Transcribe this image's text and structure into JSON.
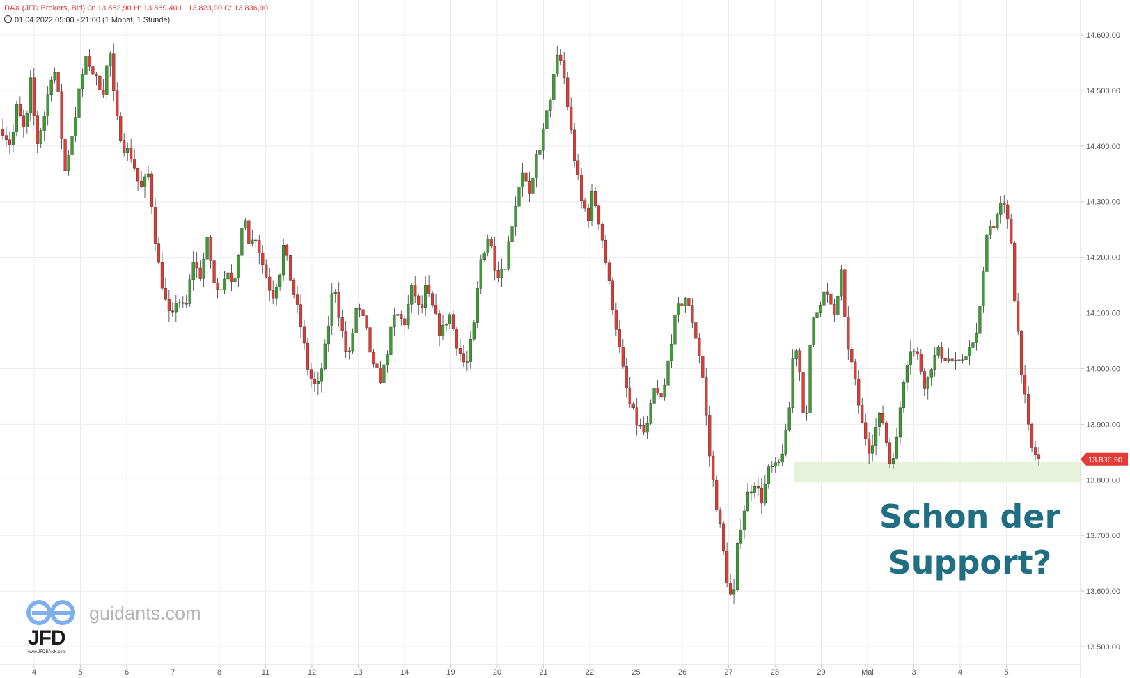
{
  "header": {
    "line1": "DAX (JFD Brokers, Bid)  O: 13.862,90  H: 13.869,40  L: 13.823,90  C: 13.836,90",
    "line2": "01.04.2022 05:00 - 21:00   (1 Monat, 1 Stunde)"
  },
  "annotation": {
    "line1": "Schon der",
    "line2": "Support?"
  },
  "watermark": {
    "site": "guidants.com",
    "brand": "JFD",
    "url": "www.JFDBANK.com"
  },
  "colors": {
    "up": "#3a9d2f",
    "down": "#e53935",
    "zone": "#e6f3da",
    "grid": "#ececec",
    "annotation": "#1f6e82"
  },
  "chart_data": {
    "type": "candlestick",
    "y_range": [
      13500,
      14600
    ],
    "y_ticks": [
      13500,
      13600,
      13700,
      13800,
      13900,
      14000,
      14100,
      14200,
      14300,
      14400,
      14500,
      14600
    ],
    "y_tick_labels": [
      "13.500,00",
      "13.600,00",
      "13.700,00",
      "13.800,00",
      "13.900,00",
      "14.000,00",
      "14.100,00",
      "14.200,00",
      "14.300,00",
      "14.400,00",
      "14.500,00",
      "14.600,00"
    ],
    "x_labels": [
      "4",
      "5",
      "6",
      "7",
      "8",
      "11",
      "12",
      "13",
      "14",
      "19",
      "20",
      "21",
      "22",
      "25",
      "26",
      "27",
      "28",
      "29",
      "Mai",
      "3",
      "4",
      "5"
    ],
    "last_price": 13836.9,
    "last_price_label": "13.836,90",
    "support_zone": [
      13795,
      13833
    ],
    "path": [
      [
        0,
        14430
      ],
      [
        0.3,
        14400
      ],
      [
        0.5,
        14470
      ],
      [
        0.8,
        14420
      ],
      [
        1.0,
        14520
      ],
      [
        1.2,
        14400
      ],
      [
        1.5,
        14460
      ],
      [
        1.8,
        14550
      ],
      [
        2.0,
        14480
      ],
      [
        2.2,
        14350
      ],
      [
        2.5,
        14430
      ],
      [
        2.8,
        14520
      ],
      [
        3.0,
        14560
      ],
      [
        3.3,
        14520
      ],
      [
        3.6,
        14500
      ],
      [
        3.8,
        14580
      ],
      [
        4.0,
        14460
      ],
      [
        4.3,
        14400
      ],
      [
        4.6,
        14380
      ],
      [
        4.9,
        14320
      ],
      [
        5.2,
        14350
      ],
      [
        5.5,
        14200
      ],
      [
        5.8,
        14120
      ],
      [
        6.0,
        14080
      ],
      [
        6.2,
        14130
      ],
      [
        6.5,
        14100
      ],
      [
        6.8,
        14200
      ],
      [
        7.0,
        14160
      ],
      [
        7.3,
        14230
      ],
      [
        7.6,
        14130
      ],
      [
        8.0,
        14180
      ],
      [
        8.3,
        14150
      ],
      [
        8.6,
        14290
      ],
      [
        8.8,
        14220
      ],
      [
        9.0,
        14240
      ],
      [
        9.3,
        14180
      ],
      [
        9.6,
        14130
      ],
      [
        9.9,
        14180
      ],
      [
        10.0,
        14220
      ],
      [
        10.3,
        14150
      ],
      [
        10.6,
        14080
      ],
      [
        10.9,
        13990
      ],
      [
        11.2,
        13960
      ],
      [
        11.5,
        14040
      ],
      [
        11.8,
        14160
      ],
      [
        12.0,
        14090
      ],
      [
        12.3,
        14010
      ],
      [
        12.6,
        14110
      ],
      [
        12.9,
        14080
      ],
      [
        13.2,
        14000
      ],
      [
        13.5,
        13980
      ],
      [
        13.8,
        14060
      ],
      [
        14.0,
        14100
      ],
      [
        14.3,
        14080
      ],
      [
        14.6,
        14150
      ],
      [
        14.9,
        14090
      ],
      [
        15.0,
        14150
      ],
      [
        15.3,
        14110
      ],
      [
        15.6,
        14060
      ],
      [
        15.9,
        14100
      ],
      [
        16.2,
        14040
      ],
      [
        16.5,
        14000
      ],
      [
        16.8,
        14080
      ],
      [
        17.0,
        14190
      ],
      [
        17.3,
        14240
      ],
      [
        17.6,
        14170
      ],
      [
        17.9,
        14190
      ],
      [
        18.2,
        14280
      ],
      [
        18.5,
        14360
      ],
      [
        18.8,
        14300
      ],
      [
        19.0,
        14380
      ],
      [
        19.2,
        14410
      ],
      [
        19.5,
        14490
      ],
      [
        19.8,
        14570
      ],
      [
        20.0,
        14520
      ],
      [
        20.3,
        14400
      ],
      [
        20.6,
        14300
      ],
      [
        20.9,
        14270
      ],
      [
        21.0,
        14320
      ],
      [
        21.3,
        14250
      ],
      [
        21.6,
        14150
      ],
      [
        21.9,
        14060
      ],
      [
        22.0,
        14020
      ],
      [
        22.3,
        13940
      ],
      [
        22.6,
        13900
      ],
      [
        22.9,
        13880
      ],
      [
        23.2,
        13960
      ],
      [
        23.5,
        13940
      ],
      [
        23.8,
        14050
      ],
      [
        24.0,
        14100
      ],
      [
        24.3,
        14130
      ],
      [
        24.6,
        14080
      ],
      [
        24.9,
        14000
      ],
      [
        25.2,
        13830
      ],
      [
        25.5,
        13730
      ],
      [
        25.8,
        13620
      ],
      [
        26.0,
        13570
      ],
      [
        26.2,
        13700
      ],
      [
        26.5,
        13770
      ],
      [
        26.8,
        13800
      ],
      [
        27.0,
        13760
      ],
      [
        27.3,
        13820
      ],
      [
        27.6,
        13820
      ],
      [
        27.9,
        13880
      ],
      [
        28.0,
        13920
      ],
      [
        28.2,
        14060
      ],
      [
        28.4,
        13990
      ],
      [
        28.6,
        13880
      ],
      [
        28.8,
        14080
      ],
      [
        29.0,
        14110
      ],
      [
        29.3,
        14140
      ],
      [
        29.6,
        14090
      ],
      [
        29.9,
        14180
      ],
      [
        30.0,
        14070
      ],
      [
        30.3,
        13990
      ],
      [
        30.6,
        13900
      ],
      [
        30.9,
        13850
      ],
      [
        31.0,
        13880
      ],
      [
        31.3,
        13920
      ],
      [
        31.6,
        13830
      ],
      [
        31.9,
        13880
      ],
      [
        32.0,
        13960
      ],
      [
        32.3,
        14040
      ],
      [
        32.6,
        14020
      ],
      [
        32.9,
        13960
      ],
      [
        33.0,
        14000
      ],
      [
        33.3,
        14030
      ],
      [
        33.6,
        14020
      ],
      [
        33.9,
        14010
      ],
      [
        34.0,
        14000
      ],
      [
        34.3,
        14030
      ],
      [
        34.6,
        14040
      ],
      [
        34.9,
        14140
      ],
      [
        35.0,
        14250
      ],
      [
        35.3,
        14260
      ],
      [
        35.6,
        14300
      ],
      [
        35.9,
        14240
      ],
      [
        36.0,
        14150
      ],
      [
        36.3,
        13990
      ],
      [
        36.6,
        13860
      ],
      [
        36.9,
        13836.9
      ]
    ]
  }
}
